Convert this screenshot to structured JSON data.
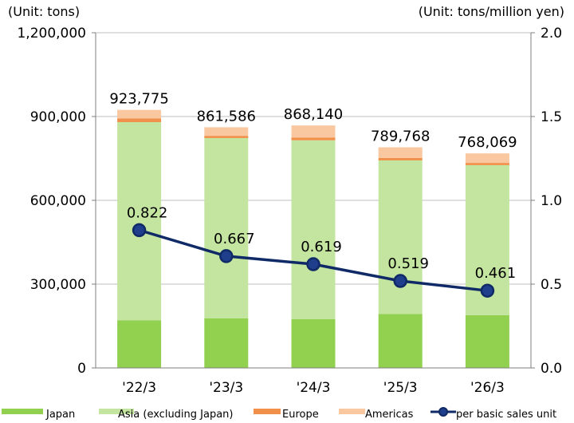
{
  "chart_data": {
    "type": "bar",
    "stacked": true,
    "left_unit": "(Unit: tons)",
    "right_unit": "(Unit: tons/million yen)",
    "categories": [
      "'22/3",
      "'23/3",
      "'24/3",
      "'25/3",
      "'26/3"
    ],
    "series": [
      {
        "name": "Japan",
        "color": "#92D050",
        "values": [
          170000,
          178000,
          175000,
          193000,
          189000
        ]
      },
      {
        "name": "Asia (excluding Japan)",
        "color": "#C4E59F",
        "values": [
          710000,
          645000,
          640000,
          550000,
          537000
        ]
      },
      {
        "name": "Europe",
        "color": "#F0904A",
        "values": [
          13000,
          8000,
          10000,
          9000,
          8000
        ]
      },
      {
        "name": "Americas",
        "color": "#F9C8A0",
        "values": [
          30775,
          30586,
          43140,
          37768,
          34069
        ]
      }
    ],
    "totals": [
      923775,
      861586,
      868140,
      789768,
      768069
    ],
    "total_labels": [
      "923,775",
      "861,586",
      "868,140",
      "789,768",
      "768,069"
    ],
    "line": {
      "name": "per basic sales unit",
      "color": "#0F2A66",
      "values": [
        0.822,
        0.667,
        0.619,
        0.519,
        0.461
      ],
      "labels": [
        "0.822",
        "0.667",
        "0.619",
        "0.519",
        "0.461"
      ]
    },
    "ylim": [
      0,
      1200000
    ],
    "y_ticks": [
      0,
      300000,
      600000,
      900000,
      1200000
    ],
    "y_tick_labels": [
      "0",
      "300,000",
      "600,000",
      "900,000",
      "1,200,000"
    ],
    "y2lim": [
      0,
      2.0
    ],
    "y2_ticks": [
      0,
      0.5,
      1.0,
      1.5,
      2.0
    ],
    "y2_tick_labels": [
      "0.0",
      "0.5",
      "1.0",
      "1.5",
      "2.0"
    ],
    "grid": true,
    "legend_position": "bottom"
  }
}
